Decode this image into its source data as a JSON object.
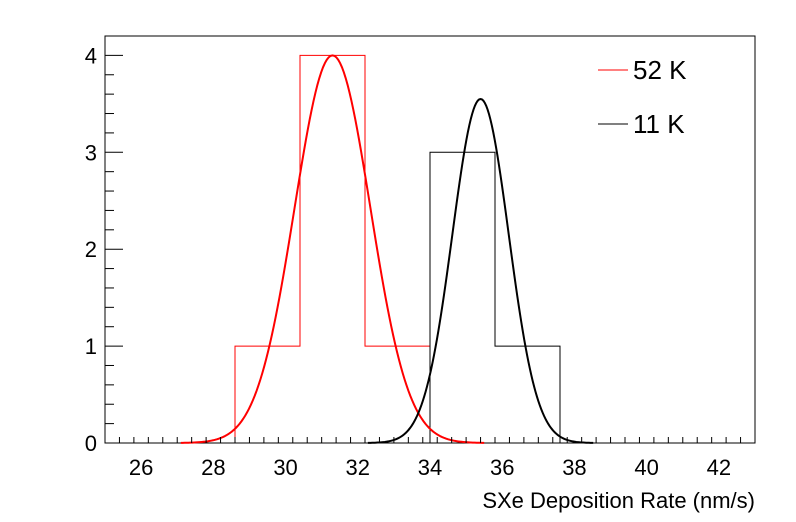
{
  "chart_data": {
    "type": "histogram",
    "xlabel": "SXe Deposition Rate (nm/s)",
    "ylabel": "",
    "xlim": [
      25,
      43
    ],
    "ylim": [
      0,
      4.2
    ],
    "x_ticks": [
      "26",
      "28",
      "30",
      "32",
      "34",
      "36",
      "38",
      "40",
      "42"
    ],
    "y_ticks": [
      "0",
      "1",
      "2",
      "3",
      "4"
    ],
    "legend_position": "top-right",
    "grid": false,
    "bin_width": 1.8,
    "series": [
      {
        "name": "52 K",
        "color": "#ff0000",
        "bins": [
          {
            "x0": 28.6,
            "x1": 30.4,
            "count": 1
          },
          {
            "x0": 30.4,
            "x1": 32.2,
            "count": 4
          },
          {
            "x0": 32.2,
            "x1": 34.0,
            "count": 1
          }
        ],
        "fit": {
          "mean": 31.3,
          "sigma": 1.05,
          "amplitude": 4.0
        }
      },
      {
        "name": "11 K",
        "color": "#000000",
        "bins": [
          {
            "x0": 34.0,
            "x1": 35.8,
            "count": 3
          },
          {
            "x0": 35.8,
            "x1": 37.6,
            "count": 1
          }
        ],
        "fit": {
          "mean": 35.4,
          "sigma": 0.78,
          "amplitude": 3.55
        }
      }
    ]
  }
}
